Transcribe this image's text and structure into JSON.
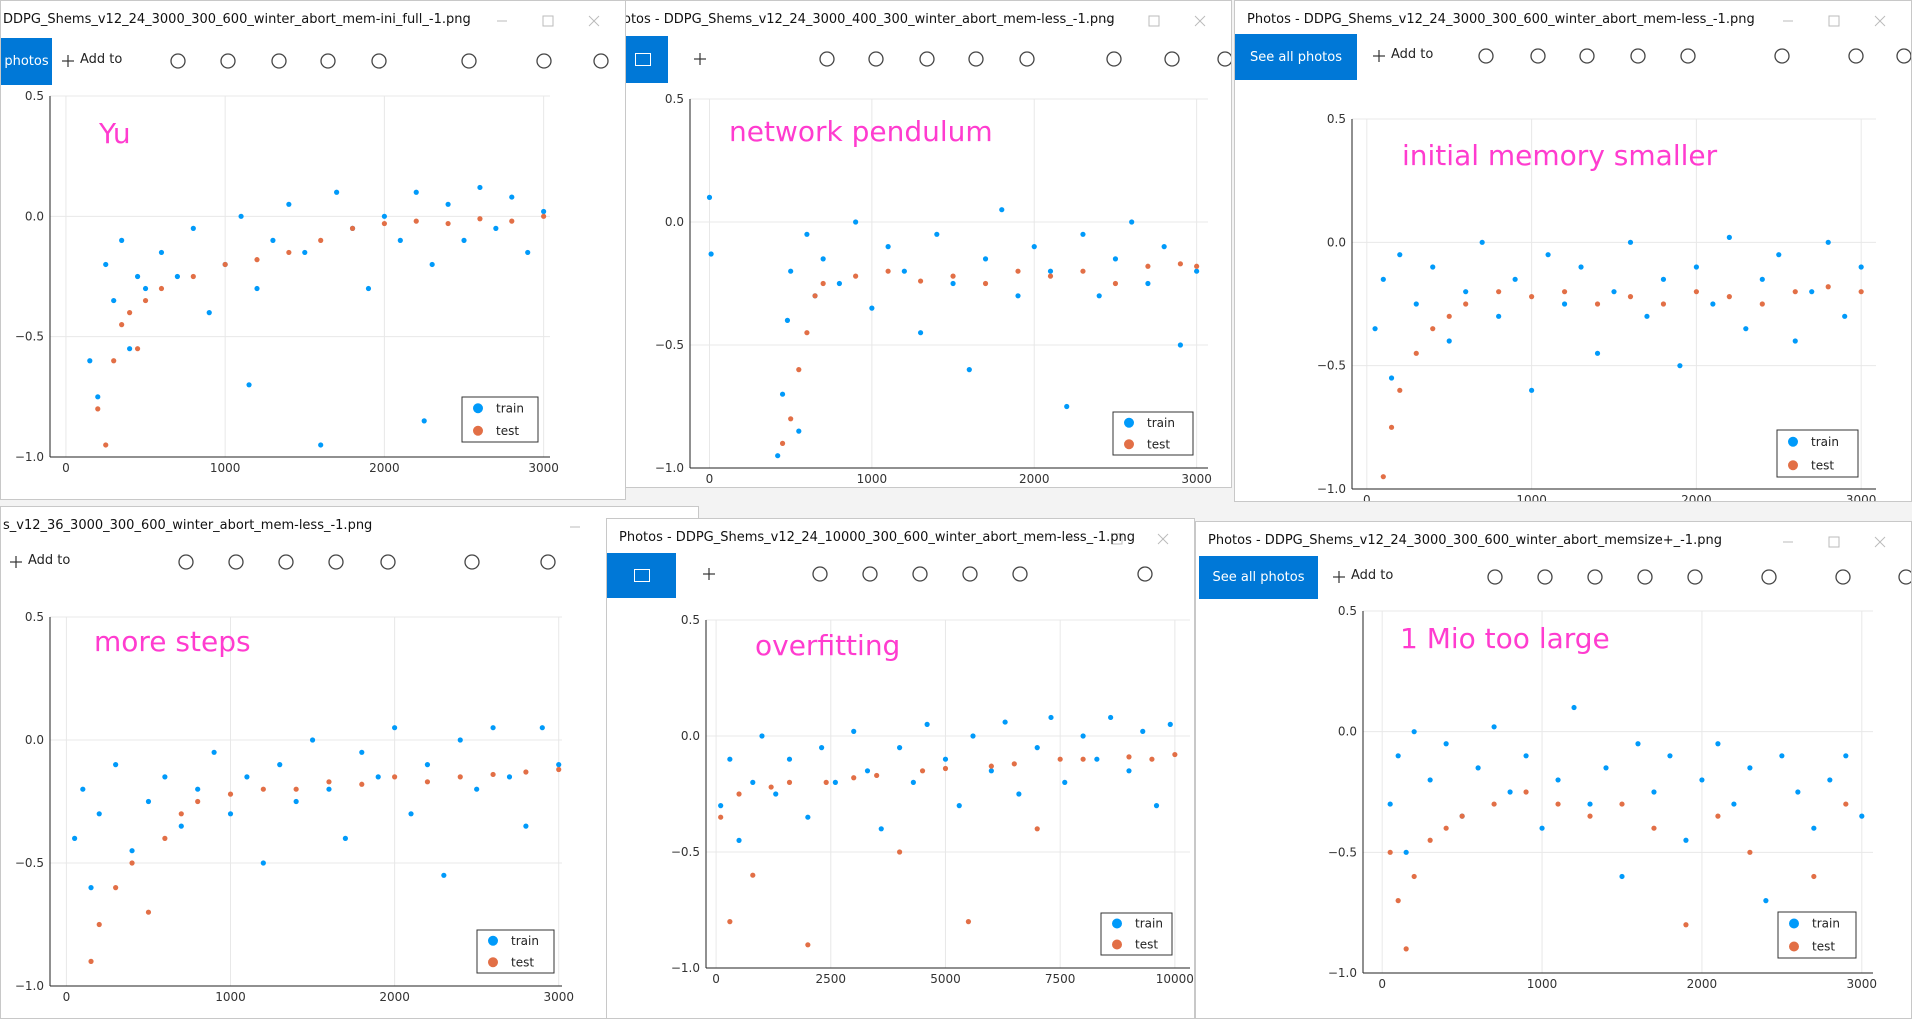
{
  "windows": [
    {
      "title": "DDPG_Shems_v12_24_3000_300_600_winter_abort_mem-ini_full_-1.png",
      "see_all": "photos",
      "add_to": "Add to"
    },
    {
      "title": "otos - DDPG_Shems_v12_24_3000_400_300_winter_abort_mem-less_-1.png"
    },
    {
      "title": "Photos - DDPG_Shems_v12_24_3000_300_600_winter_abort_mem-less_-1.png",
      "see_all": "See all photos",
      "add_to": "Add to"
    },
    {
      "title": "s_v12_36_3000_300_600_winter_abort_mem-less_-1.png",
      "add_to": "Add to"
    },
    {
      "title": "Photos - DDPG_Shems_v12_24_10000_300_600_winter_abort_mem-less_-1.png"
    },
    {
      "title": "Photos - DDPG_Shems_v12_24_3000_300_600_winter_abort_memsize+_-1.png",
      "see_all": "See all photos",
      "add_to": "Add to"
    }
  ],
  "chart_data": [
    {
      "type": "scatter",
      "annotation": "Yu",
      "xlim": [
        -100,
        3040
      ],
      "ylim": [
        -1.0,
        0.5
      ],
      "xticks": [
        0,
        1000,
        2000,
        3000
      ],
      "yticks": [
        {
          "value": -1.0,
          "label": "−1.0"
        },
        {
          "value": -0.5,
          "label": "−0.5"
        },
        {
          "value": 0.0,
          "label": "0.0"
        },
        0.5
      ],
      "grid": true,
      "legend": "lower right",
      "series": [
        {
          "name": "train",
          "color": "#009afa",
          "x": [
            150,
            200,
            250,
            300,
            350,
            400,
            450,
            500,
            600,
            700,
            800,
            900,
            1000,
            1100,
            1150,
            1200,
            1300,
            1400,
            1500,
            1600,
            1700,
            1800,
            1900,
            2000,
            2100,
            2200,
            2250,
            2300,
            2400,
            2500,
            2600,
            2700,
            2800,
            2900,
            3000
          ],
          "values": [
            -0.6,
            -0.75,
            -0.2,
            -0.35,
            -0.1,
            -0.55,
            -0.25,
            -0.3,
            -0.15,
            -0.25,
            -0.05,
            -0.4,
            -0.2,
            0.0,
            -0.7,
            -0.3,
            -0.1,
            0.05,
            -0.15,
            -0.95,
            0.1,
            -0.05,
            -0.3,
            0.0,
            -0.1,
            0.1,
            -0.85,
            -0.2,
            0.05,
            -0.1,
            0.12,
            -0.05,
            0.08,
            -0.15,
            0.02
          ]
        },
        {
          "name": "test",
          "color": "#e26f46",
          "x": [
            200,
            250,
            300,
            350,
            400,
            450,
            500,
            600,
            800,
            1000,
            1200,
            1400,
            1600,
            1800,
            2000,
            2200,
            2400,
            2600,
            2800,
            3000
          ],
          "values": [
            -0.8,
            -0.95,
            -0.6,
            -0.45,
            -0.4,
            -0.55,
            -0.35,
            -0.3,
            -0.25,
            -0.2,
            -0.18,
            -0.15,
            -0.1,
            -0.05,
            -0.03,
            -0.02,
            -0.03,
            -0.01,
            -0.02,
            0.0
          ]
        }
      ]
    },
    {
      "type": "scatter",
      "annotation": "network pendulum",
      "xlim": [
        -120,
        3070
      ],
      "ylim": [
        -1.0,
        0.5
      ],
      "xticks": [
        0,
        1000,
        2000,
        3000
      ],
      "yticks": [
        {
          "value": -1.0,
          "label": "−1.0"
        },
        {
          "value": -0.5,
          "label": "−0.5"
        },
        {
          "value": 0.0,
          "label": "0.0"
        },
        0.5
      ],
      "grid": true,
      "legend": "lower right",
      "series": [
        {
          "name": "train",
          "color": "#009afa",
          "x": [
            0,
            10,
            420,
            450,
            480,
            500,
            550,
            600,
            650,
            700,
            800,
            900,
            1000,
            1100,
            1200,
            1300,
            1400,
            1500,
            1600,
            1700,
            1800,
            1900,
            2000,
            2100,
            2200,
            2300,
            2400,
            2500,
            2600,
            2700,
            2800,
            2900,
            3000
          ],
          "values": [
            0.1,
            -0.13,
            -0.95,
            -0.7,
            -0.4,
            -0.2,
            -0.85,
            -0.05,
            -0.3,
            -0.15,
            -0.25,
            0.0,
            -0.35,
            -0.1,
            -0.2,
            -0.45,
            -0.05,
            -0.25,
            -0.6,
            -0.15,
            0.05,
            -0.3,
            -0.1,
            -0.2,
            -0.75,
            -0.05,
            -0.3,
            -0.15,
            0.0,
            -0.25,
            -0.1,
            -0.5,
            -0.2
          ]
        },
        {
          "name": "test",
          "color": "#e26f46",
          "x": [
            450,
            500,
            550,
            600,
            650,
            700,
            900,
            1100,
            1300,
            1500,
            1700,
            1900,
            2100,
            2300,
            2500,
            2700,
            2900,
            3000
          ],
          "values": [
            -0.9,
            -0.8,
            -0.6,
            -0.45,
            -0.3,
            -0.25,
            -0.22,
            -0.2,
            -0.24,
            -0.22,
            -0.25,
            -0.2,
            -0.22,
            -0.2,
            -0.25,
            -0.18,
            -0.17,
            -0.18
          ]
        }
      ]
    },
    {
      "type": "scatter",
      "annotation": "initial memory smaller",
      "xlim": [
        -90,
        3090
      ],
      "ylim": [
        -1.0,
        0.5
      ],
      "xticks": [
        0,
        1000,
        2000,
        3000
      ],
      "yticks": [
        {
          "value": -1.0,
          "label": "−1.0"
        },
        {
          "value": -0.5,
          "label": "−0.5"
        },
        {
          "value": 0.0,
          "label": "0.0"
        },
        0.5
      ],
      "grid": true,
      "legend": "lower right",
      "series": [
        {
          "name": "train",
          "color": "#009afa",
          "x": [
            50,
            100,
            150,
            200,
            300,
            400,
            500,
            600,
            700,
            800,
            900,
            1000,
            1100,
            1200,
            1300,
            1400,
            1500,
            1600,
            1700,
            1800,
            1900,
            2000,
            2100,
            2200,
            2300,
            2400,
            2500,
            2600,
            2700,
            2800,
            2900,
            3000
          ],
          "values": [
            -0.35,
            -0.15,
            -0.55,
            -0.05,
            -0.25,
            -0.1,
            -0.4,
            -0.2,
            0.0,
            -0.3,
            -0.15,
            -0.6,
            -0.05,
            -0.25,
            -0.1,
            -0.45,
            -0.2,
            0.0,
            -0.3,
            -0.15,
            -0.5,
            -0.1,
            -0.25,
            0.02,
            -0.35,
            -0.15,
            -0.05,
            -0.4,
            -0.2,
            0.0,
            -0.3,
            -0.1
          ]
        },
        {
          "name": "test",
          "color": "#e26f46",
          "x": [
            100,
            150,
            200,
            300,
            400,
            500,
            600,
            800,
            1000,
            1200,
            1400,
            1600,
            1800,
            2000,
            2200,
            2400,
            2600,
            2800,
            3000
          ],
          "values": [
            -0.95,
            -0.75,
            -0.6,
            -0.45,
            -0.35,
            -0.3,
            -0.25,
            -0.2,
            -0.22,
            -0.2,
            -0.25,
            -0.22,
            -0.25,
            -0.2,
            -0.22,
            -0.25,
            -0.2,
            -0.18,
            -0.2
          ]
        }
      ]
    },
    {
      "type": "scatter",
      "annotation": "more steps",
      "xlim": [
        -100,
        3020
      ],
      "ylim": [
        -1.0,
        0.5
      ],
      "xticks": [
        0,
        1000,
        2000,
        3000
      ],
      "yticks": [
        {
          "value": -1.0,
          "label": "−1.0"
        },
        {
          "value": -0.5,
          "label": "−0.5"
        },
        {
          "value": 0.0,
          "label": "0.0"
        },
        0.5
      ],
      "grid": true,
      "legend": "lower right",
      "series": [
        {
          "name": "train",
          "color": "#009afa",
          "x": [
            50,
            100,
            150,
            200,
            300,
            400,
            500,
            600,
            700,
            800,
            900,
            1000,
            1100,
            1200,
            1300,
            1400,
            1500,
            1600,
            1700,
            1800,
            1900,
            2000,
            2100,
            2200,
            2300,
            2400,
            2500,
            2600,
            2700,
            2800,
            2900,
            3000
          ],
          "values": [
            -0.4,
            -0.2,
            -0.6,
            -0.3,
            -0.1,
            -0.45,
            -0.25,
            -0.15,
            -0.35,
            -0.2,
            -0.05,
            -0.3,
            -0.15,
            -0.5,
            -0.1,
            -0.25,
            0.0,
            -0.2,
            -0.4,
            -0.05,
            -0.15,
            0.05,
            -0.3,
            -0.1,
            -0.55,
            0.0,
            -0.2,
            0.05,
            -0.15,
            -0.35,
            0.05,
            -0.1
          ]
        },
        {
          "name": "test",
          "color": "#e26f46",
          "x": [
            150,
            200,
            300,
            400,
            500,
            600,
            700,
            800,
            1000,
            1200,
            1400,
            1600,
            1800,
            2000,
            2200,
            2400,
            2600,
            2800,
            3000
          ],
          "values": [
            -0.9,
            -0.75,
            -0.6,
            -0.5,
            -0.7,
            -0.4,
            -0.3,
            -0.25,
            -0.22,
            -0.2,
            -0.2,
            -0.17,
            -0.18,
            -0.15,
            -0.17,
            -0.15,
            -0.14,
            -0.13,
            -0.12
          ]
        }
      ]
    },
    {
      "type": "scatter",
      "annotation": "overfitting",
      "xlim": [
        -220,
        10330
      ],
      "ylim": [
        -1.0,
        0.5
      ],
      "xticks": [
        0,
        2500,
        5000,
        7500,
        10000
      ],
      "yticks": [
        {
          "value": -1.0,
          "label": "−1.0"
        },
        {
          "value": -0.5,
          "label": "−0.5"
        },
        {
          "value": 0.0,
          "label": "0.0"
        },
        0.5
      ],
      "grid": true,
      "legend": "lower right",
      "series": [
        {
          "name": "train",
          "color": "#009afa",
          "x": [
            100,
            300,
            500,
            800,
            1000,
            1300,
            1600,
            2000,
            2300,
            2600,
            3000,
            3300,
            3600,
            4000,
            4300,
            4600,
            5000,
            5300,
            5600,
            6000,
            6300,
            6600,
            7000,
            7300,
            7600,
            8000,
            8300,
            8600,
            9000,
            9300,
            9600,
            9900
          ],
          "values": [
            -0.3,
            -0.1,
            -0.45,
            -0.2,
            0.0,
            -0.25,
            -0.1,
            -0.35,
            -0.05,
            -0.2,
            0.02,
            -0.15,
            -0.4,
            -0.05,
            -0.2,
            0.05,
            -0.1,
            -0.3,
            0.0,
            -0.15,
            0.06,
            -0.25,
            -0.05,
            0.08,
            -0.2,
            0.0,
            -0.1,
            0.08,
            -0.15,
            0.02,
            -0.3,
            0.05
          ]
        },
        {
          "name": "test",
          "color": "#e26f46",
          "x": [
            100,
            300,
            500,
            800,
            1200,
            1600,
            2000,
            2400,
            3000,
            3500,
            4000,
            4500,
            5000,
            5500,
            6000,
            6500,
            7000,
            7500,
            8000,
            8500,
            9000,
            9500,
            10000
          ],
          "values": [
            -0.35,
            -0.8,
            -0.25,
            -0.6,
            -0.22,
            -0.2,
            -0.9,
            -0.2,
            -0.18,
            -0.17,
            -0.5,
            -0.15,
            -0.14,
            -0.8,
            -0.13,
            -0.12,
            -0.4,
            -0.1,
            -0.1,
            -0.9,
            -0.09,
            -0.1,
            -0.08
          ]
        }
      ]
    },
    {
      "type": "scatter",
      "annotation": "1 Mio too large",
      "xlim": [
        -120,
        3070
      ],
      "ylim": [
        -1.0,
        0.5
      ],
      "xticks": [
        0,
        1000,
        2000,
        3000
      ],
      "yticks": [
        {
          "value": -1.0,
          "label": "−1.0"
        },
        {
          "value": -0.5,
          "label": "−0.5"
        },
        {
          "value": 0.0,
          "label": "0.0"
        },
        0.5
      ],
      "grid": true,
      "legend": "lower right",
      "series": [
        {
          "name": "train",
          "color": "#009afa",
          "x": [
            50,
            100,
            150,
            200,
            300,
            400,
            500,
            600,
            700,
            800,
            900,
            1000,
            1100,
            1200,
            1300,
            1400,
            1500,
            1600,
            1700,
            1800,
            1900,
            2000,
            2100,
            2200,
            2300,
            2400,
            2500,
            2600,
            2700,
            2800,
            2900,
            3000
          ],
          "values": [
            -0.3,
            -0.1,
            -0.5,
            0.0,
            -0.2,
            -0.05,
            -0.35,
            -0.15,
            0.02,
            -0.25,
            -0.1,
            -0.4,
            -0.2,
            0.1,
            -0.3,
            -0.15,
            -0.6,
            -0.05,
            -0.25,
            -0.1,
            -0.45,
            -0.2,
            -0.05,
            -0.3,
            -0.15,
            -0.7,
            -0.1,
            -0.25,
            -0.4,
            -0.2,
            -0.1,
            -0.35
          ]
        },
        {
          "name": "test",
          "color": "#e26f46",
          "x": [
            50,
            100,
            150,
            200,
            300,
            400,
            500,
            700,
            900,
            1100,
            1300,
            1500,
            1700,
            1900,
            2100,
            2300,
            2500,
            2700,
            2900
          ],
          "values": [
            -0.5,
            -0.7,
            -0.9,
            -0.6,
            -0.45,
            -0.4,
            -0.35,
            -0.3,
            -0.25,
            -0.3,
            -0.35,
            -0.3,
            -0.4,
            -0.8,
            -0.35,
            -0.5,
            -0.9,
            -0.6,
            -0.3
          ]
        }
      ]
    }
  ]
}
